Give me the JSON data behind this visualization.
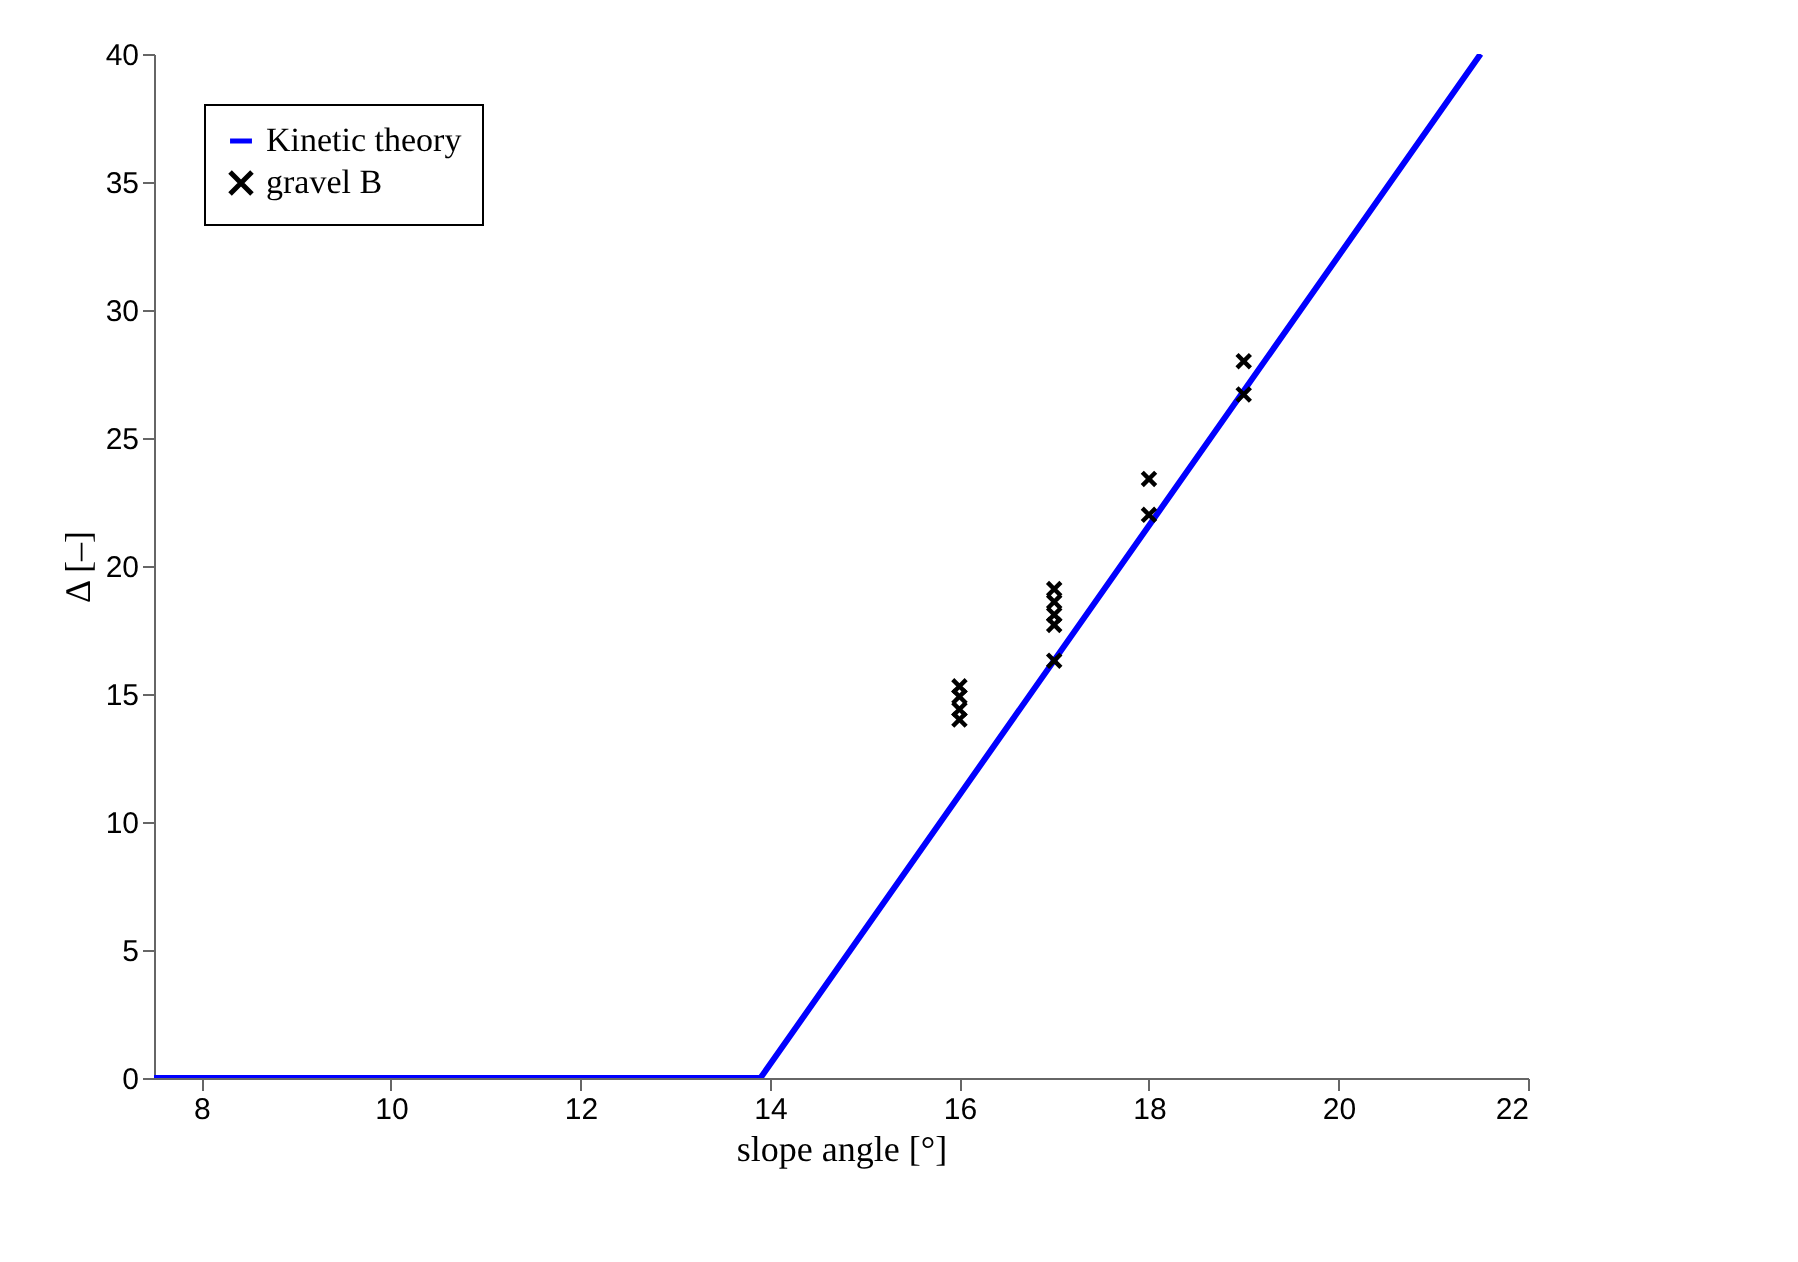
{
  "chart_data": {
    "type": "line",
    "xlabel": "slope angle [°]",
    "ylabel": "Δ [–]",
    "xlim": [
      7.5,
      22
    ],
    "xticks": [
      8,
      10,
      12,
      14,
      16,
      18,
      20,
      22
    ],
    "ylim": [
      0,
      40
    ],
    "yticks": [
      0,
      5,
      10,
      15,
      20,
      25,
      30,
      35,
      40
    ],
    "grid": false,
    "legend": "top left",
    "series": [
      {
        "name": "Kinetic theory",
        "color": "#0000ff",
        "marker": "none",
        "line_style": "solid",
        "x": [
          7.5,
          13.9,
          21.5
        ],
        "values": [
          0,
          0,
          40
        ]
      },
      {
        "name": "gravel B",
        "type": "scatter",
        "color": "#000000",
        "marker": "cross",
        "x": [
          16,
          16,
          16,
          16,
          17,
          17,
          17,
          17,
          17,
          18,
          18,
          19,
          19
        ],
        "values": [
          15.3,
          14.9,
          14.4,
          14.0,
          19.1,
          18.6,
          18.1,
          17.7,
          16.3,
          23.4,
          22.0,
          28.0,
          26.7
        ]
      }
    ]
  }
}
